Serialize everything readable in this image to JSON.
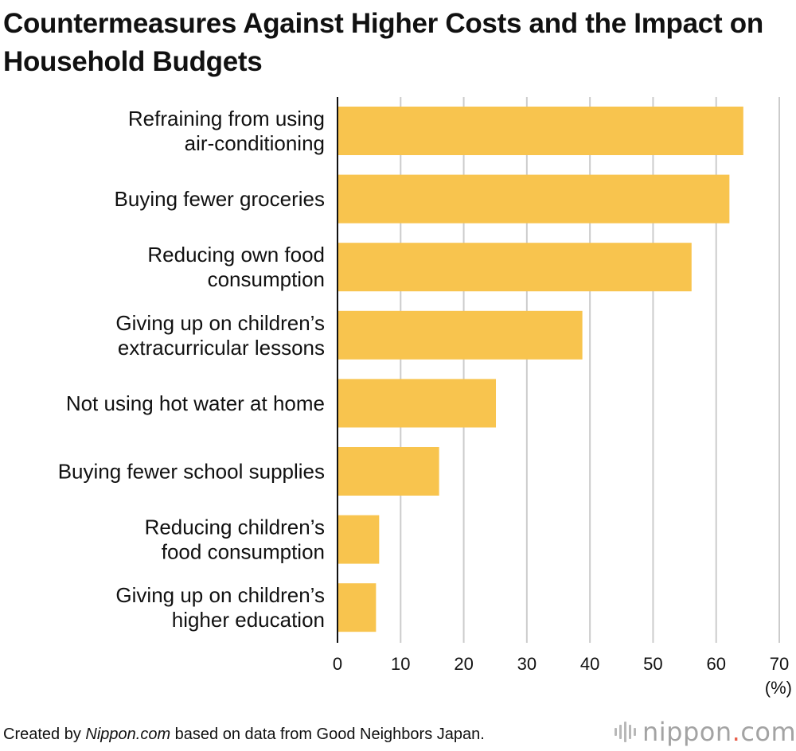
{
  "title": "Countermeasures Against Higher Costs and the Impact on Household Budgets",
  "footer": {
    "prefix": "Created by ",
    "source_name": "Nippon.com",
    "suffix": " based on data from Good Neighbors Japan."
  },
  "logo": {
    "icon": "nippon-sound-wave-icon",
    "text_left": "nippon",
    "dot": ".",
    "text_right": "com",
    "accent_color": "#e8604c"
  },
  "chart_data": {
    "type": "bar",
    "orientation": "horizontal",
    "categories": [
      [
        "Refraining from using",
        "air-conditioning"
      ],
      [
        "Buying fewer groceries"
      ],
      [
        "Reducing own food",
        "consumption"
      ],
      [
        "Giving up on children’s",
        "extracurricular lessons"
      ],
      [
        "Not using hot water at home"
      ],
      [
        "Buying fewer school supplies"
      ],
      [
        "Reducing children’s",
        "food consumption"
      ],
      [
        "Giving up on children’s",
        "higher education"
      ]
    ],
    "values": [
      64.3,
      62.1,
      56.1,
      38.8,
      25.1,
      16.1,
      6.6,
      6.1
    ],
    "xlim": [
      0,
      70
    ],
    "xticks": [
      0,
      10,
      20,
      30,
      40,
      50,
      60,
      70
    ],
    "unit": "(%)",
    "bar_color": "#f8c44e",
    "grid": true,
    "grid_color": "#cccccc"
  }
}
